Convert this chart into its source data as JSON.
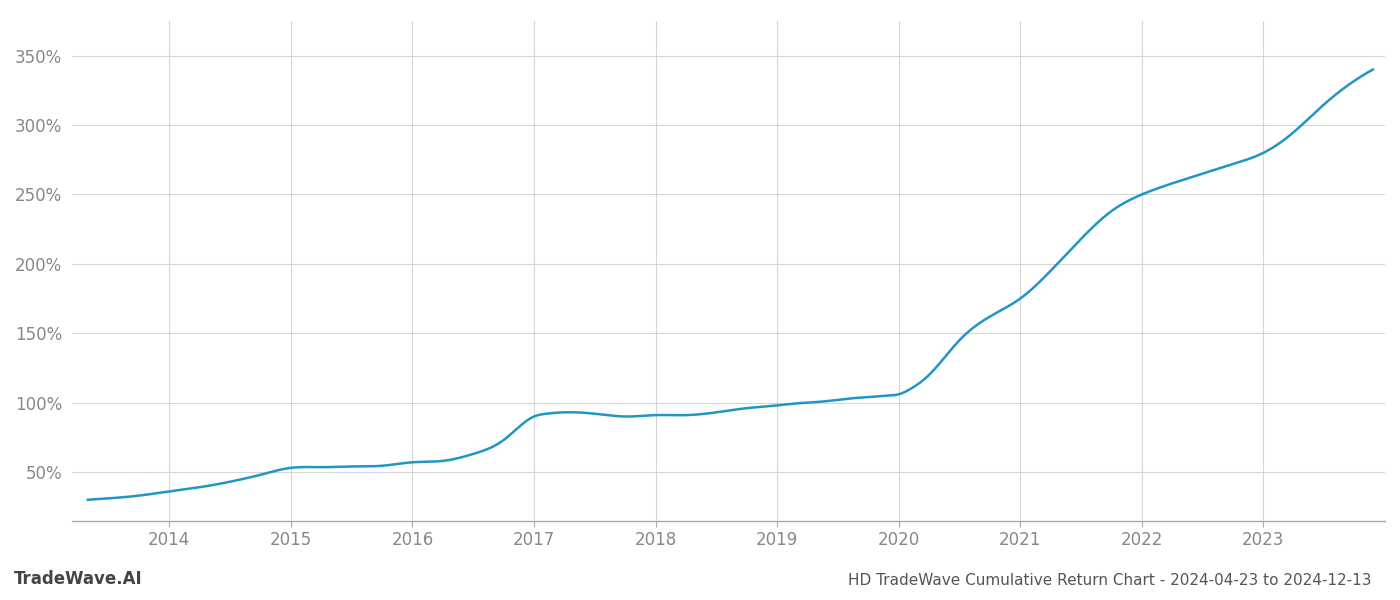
{
  "x": [
    2013.33,
    2013.5,
    2013.75,
    2014.0,
    2014.25,
    2014.5,
    2014.75,
    2015.0,
    2015.25,
    2015.5,
    2015.75,
    2016.0,
    2016.25,
    2016.5,
    2016.75,
    2017.0,
    2017.1,
    2017.25,
    2017.5,
    2017.75,
    2018.0,
    2018.25,
    2018.5,
    2018.75,
    2019.0,
    2019.1,
    2019.25,
    2019.4,
    2019.5,
    2019.6,
    2019.75,
    2019.9,
    2020.0,
    2020.1,
    2020.25,
    2020.5,
    2020.75,
    2021.0,
    2021.25,
    2021.5,
    2021.75,
    2022.0,
    2022.25,
    2022.5,
    2022.75,
    2023.0,
    2023.25,
    2023.5,
    2023.75,
    2023.9
  ],
  "y": [
    30,
    31,
    33,
    36,
    39,
    43,
    48,
    53,
    53.5,
    54,
    54.5,
    57,
    58,
    63,
    73,
    90,
    92,
    93,
    92,
    90,
    91,
    91,
    93,
    96,
    98,
    99,
    100,
    101,
    102,
    103,
    104,
    105,
    106,
    110,
    120,
    145,
    162,
    175,
    195,
    218,
    238,
    250,
    258,
    265,
    272,
    280,
    295,
    315,
    332,
    340
  ],
  "line_color": "#2196c4",
  "line_width": 1.8,
  "xlim": [
    2013.2,
    2024.0
  ],
  "ylim": [
    15,
    375
  ],
  "yticks": [
    50,
    100,
    150,
    200,
    250,
    300,
    350
  ],
  "xticks": [
    2014,
    2015,
    2016,
    2017,
    2018,
    2019,
    2020,
    2021,
    2022,
    2023
  ],
  "grid_color": "#cccccc",
  "grid_alpha": 0.8,
  "bg_color": "#ffffff",
  "title": "HD TradeWave Cumulative Return Chart - 2024-04-23 to 2024-12-13",
  "title_fontsize": 11,
  "title_color": "#555555",
  "watermark": "TradeWave.AI",
  "watermark_fontsize": 12,
  "watermark_color": "#444444",
  "tick_fontsize": 12,
  "tick_color": "#888888"
}
